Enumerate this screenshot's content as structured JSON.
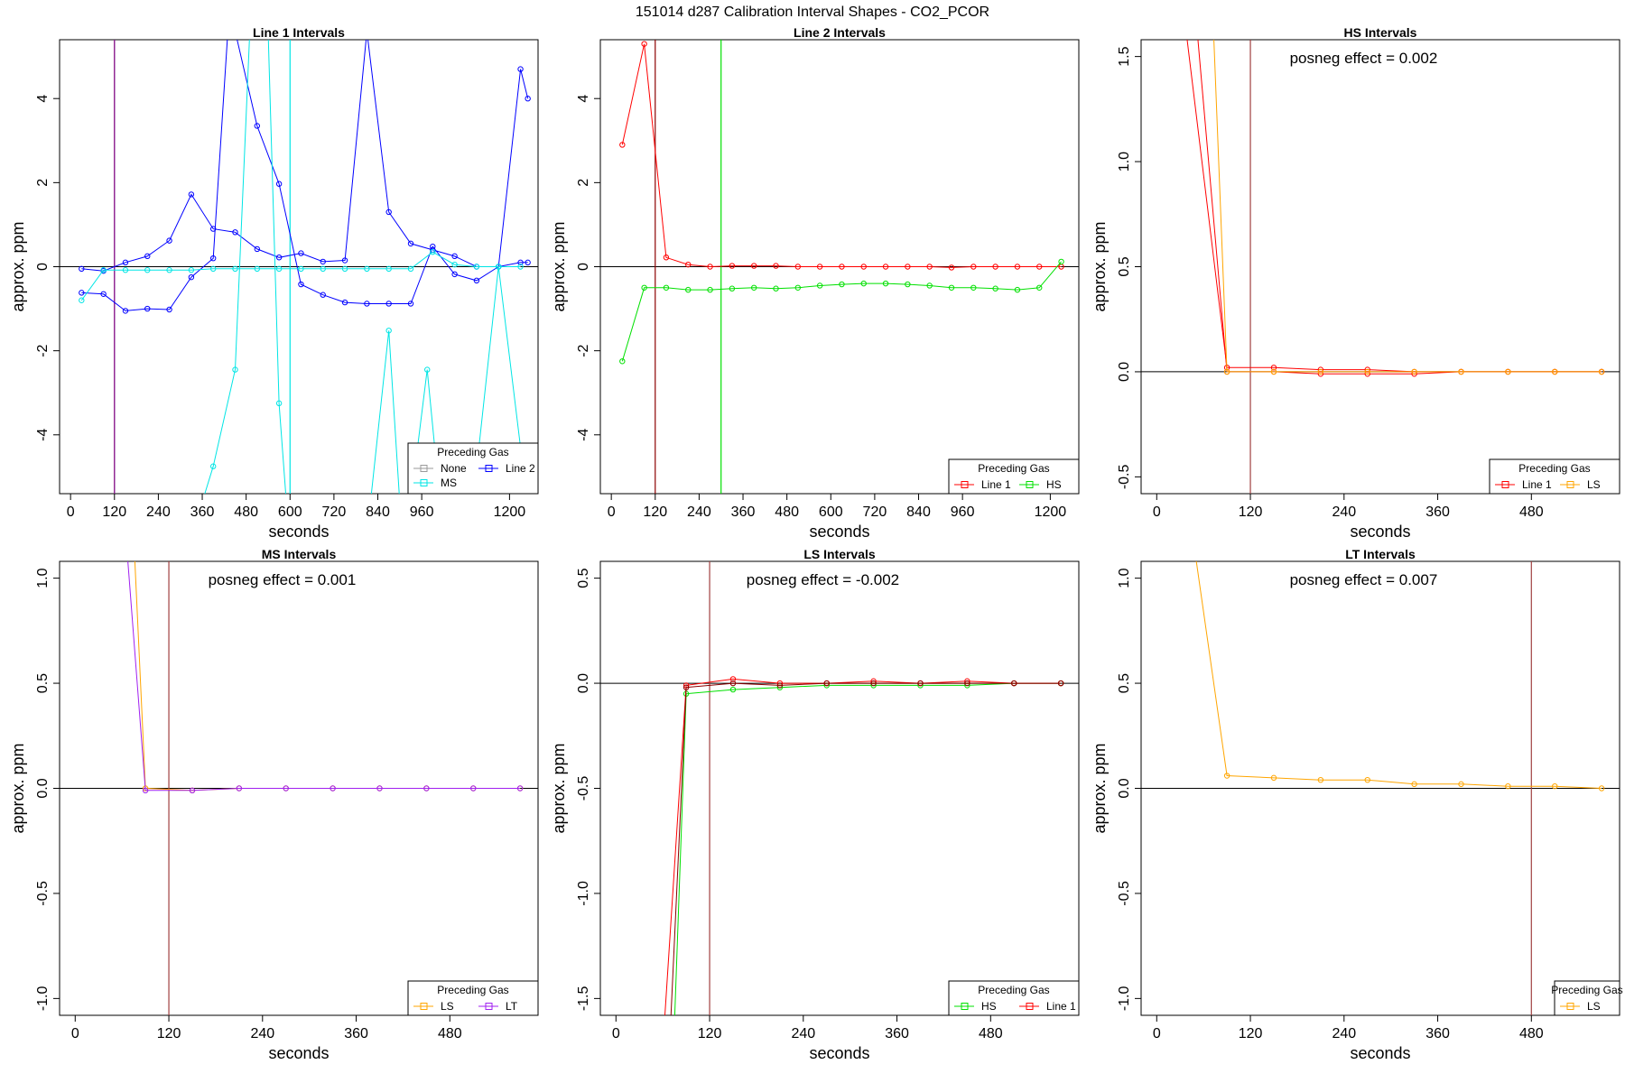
{
  "figure_title": "151014  d287   Calibration Interval Shapes - CO2_PCOR",
  "chart_data": [
    {
      "type": "line",
      "title": "Line 1 Intervals",
      "xlabel": "seconds",
      "ylabel": "approx. ppm",
      "xlim": [
        -30,
        1278
      ],
      "ylim": [
        -5.4,
        5.4
      ],
      "xticks": [
        0,
        120,
        240,
        360,
        480,
        600,
        720,
        840,
        960,
        1200
      ],
      "xtick_labels": [
        "0",
        "120",
        "240",
        "360",
        "480",
        "600",
        "720",
        "840",
        "960",
        "1200"
      ],
      "yticks": [
        -4,
        -2,
        0,
        2,
        4
      ],
      "ytick_labels": [
        "-4",
        "-2",
        "0",
        "2",
        "4"
      ],
      "hline": 0,
      "vlines": [
        {
          "x": 120,
          "color": "#0000ff"
        },
        {
          "x": 120,
          "color": "#a0207a"
        },
        {
          "x": 600,
          "color": "#00e5e5"
        }
      ],
      "annotation": "",
      "legend": {
        "title": "Preceding Gas",
        "position": "bottom-right",
        "entries": [
          {
            "label": "None",
            "color": "#9a9a9a"
          },
          {
            "label": "Line 2",
            "color": "#0000ff"
          },
          {
            "label": "MS",
            "color": "#00e5e5"
          }
        ]
      },
      "series": [
        {
          "name": "Line 2 a",
          "color": "#0000ff",
          "x": [
            30,
            90,
            150,
            210,
            270,
            330,
            390,
            450,
            510,
            570,
            630,
            690,
            750,
            810,
            870,
            930,
            990,
            1050,
            1110,
            1170,
            1230,
            1250
          ],
          "y": [
            -0.05,
            -0.1,
            0.1,
            0.25,
            0.62,
            1.72,
            0.9,
            0.82,
            0.42,
            0.22,
            0.32,
            0.12,
            0.15,
            5.6,
            1.3,
            0.55,
            0.4,
            0.25,
            0.0,
            0.0,
            0.1,
            0.1
          ]
        },
        {
          "name": "Line 2 b",
          "color": "#0000ff",
          "x": [
            30,
            90,
            150,
            210,
            270,
            330,
            390,
            430,
            450,
            510,
            570,
            630,
            690,
            750,
            810,
            870,
            930,
            990,
            1050,
            1110,
            1170,
            1230,
            1250
          ],
          "y": [
            -0.62,
            -0.65,
            -1.05,
            -1.0,
            -1.02,
            -0.25,
            0.2,
            5.6,
            5.6,
            3.35,
            1.97,
            -0.42,
            -0.67,
            -0.85,
            -0.88,
            -0.88,
            -0.88,
            0.48,
            -0.18,
            -0.33,
            0.0,
            4.7,
            4.0
          ]
        },
        {
          "name": "MS a",
          "color": "#00e5e5",
          "x": [
            30,
            90,
            150,
            210,
            270,
            330,
            390,
            450,
            510,
            570,
            630,
            690,
            750,
            810,
            870,
            930,
            990,
            1050,
            1110,
            1170,
            1230
          ],
          "y": [
            -0.8,
            -0.08,
            -0.08,
            -0.08,
            -0.08,
            -0.08,
            -0.05,
            -0.05,
            -0.05,
            -0.05,
            -0.05,
            -0.05,
            -0.05,
            -0.05,
            -0.05,
            -0.05,
            0.35,
            0.05,
            0.0,
            0.0,
            0.0
          ]
        },
        {
          "name": "MS b",
          "color": "#00e5e5",
          "x": [
            360,
            390,
            450,
            490,
            510,
            540,
            570,
            590
          ],
          "y": [
            -5.6,
            -4.75,
            -2.45,
            5.6,
            5.6,
            5.6,
            -3.25,
            -5.6
          ]
        },
        {
          "name": "MS c",
          "color": "#00e5e5",
          "x": [
            820,
            870,
            900,
            930,
            975,
            1010,
            1050,
            1100,
            1170,
            1230,
            1245
          ],
          "y": [
            -5.6,
            -1.52,
            -5.6,
            -5.6,
            -2.45,
            -5.6,
            -5.6,
            -5.6,
            0.0,
            -4.3,
            -5.6
          ]
        }
      ]
    },
    {
      "type": "line",
      "title": "Line 2 Intervals",
      "xlabel": "seconds",
      "ylabel": "approx. ppm",
      "xlim": [
        -30,
        1278
      ],
      "ylim": [
        -5.4,
        5.4
      ],
      "xticks": [
        0,
        120,
        240,
        360,
        480,
        600,
        720,
        840,
        960,
        1200
      ],
      "xtick_labels": [
        "0",
        "120",
        "240",
        "360",
        "480",
        "600",
        "720",
        "840",
        "960",
        "1200"
      ],
      "yticks": [
        -4,
        -2,
        0,
        2,
        4
      ],
      "ytick_labels": [
        "-4",
        "-2",
        "0",
        "2",
        "4"
      ],
      "hline": 0,
      "vlines": [
        {
          "x": 120,
          "color": "#8b0000"
        },
        {
          "x": 300,
          "color": "#00e000"
        }
      ],
      "annotation": "",
      "legend": {
        "title": "Preceding Gas",
        "position": "bottom-right",
        "entries": [
          {
            "label": "Line 1",
            "color": "#ff0000"
          },
          {
            "label": "HS",
            "color": "#00e000"
          }
        ]
      },
      "series": [
        {
          "name": "Line 1",
          "color": "#ff0000",
          "x": [
            30,
            90,
            150,
            210,
            270,
            330,
            390,
            450,
            510,
            570,
            630,
            690,
            750,
            810,
            870,
            930,
            990,
            1050,
            1110,
            1170,
            1230
          ],
          "y": [
            2.9,
            5.3,
            0.22,
            0.05,
            0.0,
            0.02,
            0.02,
            0.02,
            0.0,
            0.0,
            0.0,
            0.0,
            0.0,
            0.0,
            0.0,
            -0.02,
            0.0,
            0.0,
            0.0,
            0.0,
            0.0
          ]
        },
        {
          "name": "HS",
          "color": "#00e000",
          "x": [
            30,
            90,
            150,
            210,
            270,
            330,
            390,
            450,
            510,
            570,
            630,
            690,
            750,
            810,
            870,
            930,
            990,
            1050,
            1110,
            1170,
            1230
          ],
          "y": [
            -2.25,
            -0.5,
            -0.5,
            -0.55,
            -0.55,
            -0.52,
            -0.5,
            -0.52,
            -0.5,
            -0.45,
            -0.42,
            -0.4,
            -0.4,
            -0.42,
            -0.45,
            -0.5,
            -0.5,
            -0.52,
            -0.55,
            -0.5,
            0.12
          ]
        }
      ]
    },
    {
      "type": "line",
      "title": "HS Intervals",
      "xlabel": "seconds",
      "ylabel": "approx. ppm",
      "xlim": [
        -20,
        593
      ],
      "ylim": [
        -0.58,
        1.58
      ],
      "xticks": [
        0,
        120,
        240,
        360,
        480
      ],
      "xtick_labels": [
        "0",
        "120",
        "240",
        "360",
        "480"
      ],
      "yticks": [
        -0.5,
        0.0,
        0.5,
        1.0,
        1.5
      ],
      "ytick_labels": [
        "-0.5",
        "0.0",
        "0.5",
        "1.0",
        "1.5"
      ],
      "hline": 0,
      "vlines": [
        {
          "x": 120,
          "color": "#a04040"
        }
      ],
      "annotation": "posneg effect = 0.002",
      "legend": {
        "title": "Preceding Gas",
        "position": "bottom-right",
        "entries": [
          {
            "label": "Line 1",
            "color": "#ff0000"
          },
          {
            "label": "LS",
            "color": "#ffa500"
          }
        ]
      },
      "series": [
        {
          "name": "Line 1 a",
          "color": "#ff0000",
          "x": [
            35,
            90,
            150,
            210,
            270,
            330,
            390,
            450,
            510,
            570
          ],
          "y": [
            1.7,
            0.02,
            0.02,
            0.01,
            0.01,
            0.0,
            0.0,
            0.0,
            0.0,
            0.0
          ]
        },
        {
          "name": "Line 1 b",
          "color": "#ff0000",
          "x": [
            50,
            90,
            150,
            210,
            270,
            330,
            390,
            450,
            510,
            570
          ],
          "y": [
            1.7,
            0.0,
            0.0,
            -0.01,
            -0.01,
            -0.01,
            0.0,
            0.0,
            0.0,
            0.0
          ]
        },
        {
          "name": "LS",
          "color": "#ffa500",
          "x": [
            72,
            90,
            150,
            210,
            270,
            330,
            390,
            450,
            510,
            570
          ],
          "y": [
            1.7,
            0.0,
            0.0,
            0.0,
            0.0,
            0.0,
            0.0,
            0.0,
            0.0,
            0.0
          ]
        }
      ]
    },
    {
      "type": "line",
      "title": "MS Intervals",
      "xlabel": "seconds",
      "ylabel": "approx. ppm",
      "xlim": [
        -20,
        593
      ],
      "ylim": [
        -1.08,
        1.08
      ],
      "xticks": [
        0,
        120,
        240,
        360,
        480
      ],
      "xtick_labels": [
        "0",
        "120",
        "240",
        "360",
        "480"
      ],
      "yticks": [
        -1.0,
        -0.5,
        0.0,
        0.5,
        1.0
      ],
      "ytick_labels": [
        "-1.0",
        "-0.5",
        "0.0",
        "0.5",
        "1.0"
      ],
      "hline": 0,
      "vlines": [
        {
          "x": 120,
          "color": "#a04040"
        }
      ],
      "annotation": "posneg effect = 0.001",
      "legend": {
        "title": "Preceding Gas",
        "position": "bottom-right",
        "entries": [
          {
            "label": "LS",
            "color": "#ffa500"
          },
          {
            "label": "LT",
            "color": "#a020f0"
          }
        ]
      },
      "series": [
        {
          "name": "LS",
          "color": "#ffa500",
          "x": [
            75,
            90,
            150,
            210,
            270,
            330,
            390,
            450,
            510,
            570
          ],
          "y": [
            1.2,
            0.0,
            -0.01,
            0.0,
            0.0,
            0.0,
            0.0,
            0.0,
            0.0,
            0.0
          ]
        },
        {
          "name": "LT",
          "color": "#a020f0",
          "x": [
            65,
            90,
            150,
            210,
            270,
            330,
            390,
            450,
            510,
            570
          ],
          "y": [
            1.2,
            -0.01,
            -0.01,
            0.0,
            0.0,
            0.0,
            0.0,
            0.0,
            0.0,
            0.0
          ]
        }
      ]
    },
    {
      "type": "line",
      "title": "LS Intervals",
      "xlabel": "seconds",
      "ylabel": "approx. ppm",
      "xlim": [
        -20,
        593
      ],
      "ylim": [
        -1.58,
        0.58
      ],
      "xticks": [
        0,
        120,
        240,
        360,
        480
      ],
      "xtick_labels": [
        "0",
        "120",
        "240",
        "360",
        "480"
      ],
      "yticks": [
        -1.5,
        -1.0,
        -0.5,
        0.0,
        0.5
      ],
      "ytick_labels": [
        "-1.5",
        "-1.0",
        "-0.5",
        "0.0",
        "0.5"
      ],
      "hline": 0,
      "vlines": [
        {
          "x": 120,
          "color": "#a04040"
        }
      ],
      "annotation": "posneg effect = -0.002",
      "legend": {
        "title": "Preceding Gas",
        "position": "bottom-right",
        "entries": [
          {
            "label": "HS",
            "color": "#00e000"
          },
          {
            "label": "Line 1",
            "color": "#ff0000"
          }
        ]
      },
      "series": [
        {
          "name": "HS",
          "color": "#00e000",
          "x": [
            75,
            90,
            150,
            210,
            270,
            330,
            390,
            450,
            510,
            570
          ],
          "y": [
            -1.62,
            -0.05,
            -0.03,
            -0.02,
            -0.01,
            -0.01,
            -0.01,
            -0.01,
            0.0,
            0.0
          ]
        },
        {
          "name": "Line 1 a",
          "color": "#ff0000",
          "x": [
            62,
            90,
            150,
            210,
            270,
            330,
            390,
            450,
            510,
            570
          ],
          "y": [
            -1.62,
            -0.01,
            0.02,
            0.0,
            0.0,
            0.01,
            0.0,
            0.01,
            0.0,
            0.0
          ]
        },
        {
          "name": "Line 1 b",
          "color": "#8b0000",
          "x": [
            70,
            90,
            150,
            210,
            270,
            330,
            390,
            450,
            510,
            570
          ],
          "y": [
            -1.62,
            -0.02,
            0.0,
            -0.01,
            0.0,
            0.0,
            0.0,
            0.0,
            0.0,
            0.0
          ]
        }
      ]
    },
    {
      "type": "line",
      "title": "LT Intervals",
      "xlabel": "seconds",
      "ylabel": "approx. ppm",
      "xlim": [
        -20,
        593
      ],
      "ylim": [
        -1.08,
        1.08
      ],
      "xticks": [
        0,
        120,
        240,
        360,
        480
      ],
      "xtick_labels": [
        "0",
        "120",
        "240",
        "360",
        "480"
      ],
      "yticks": [
        -1.0,
        -0.5,
        0.0,
        0.5,
        1.0
      ],
      "ytick_labels": [
        "-1.0",
        "-0.5",
        "0.0",
        "0.5",
        "1.0"
      ],
      "hline": 0,
      "vlines": [
        {
          "x": 480,
          "color": "#a04040"
        }
      ],
      "annotation": "posneg effect = 0.007",
      "legend": {
        "title": "Preceding Gas",
        "position": "bottom-right",
        "entries": [
          {
            "label": "LS",
            "color": "#ffa500"
          }
        ]
      },
      "series": [
        {
          "name": "LS",
          "color": "#ffa500",
          "x": [
            50,
            90,
            150,
            210,
            270,
            330,
            390,
            450,
            510,
            570
          ],
          "y": [
            1.1,
            0.06,
            0.05,
            0.04,
            0.04,
            0.02,
            0.02,
            0.01,
            0.01,
            0.0
          ]
        }
      ]
    }
  ]
}
